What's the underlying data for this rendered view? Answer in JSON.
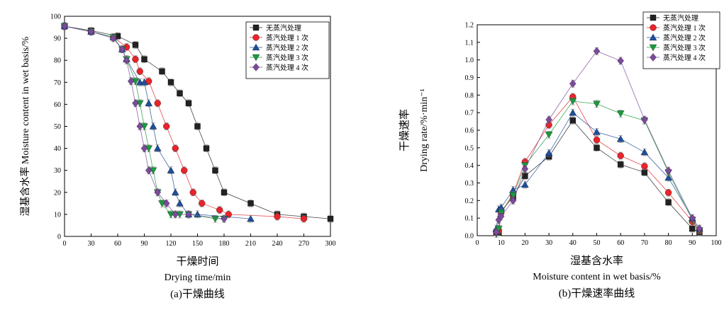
{
  "chart_data": [
    {
      "type": "scatter",
      "caption": "(a)干燥曲线",
      "xlabel_cn": "干燥时间",
      "xlabel": "Drying time/min",
      "ylabel": "湿基含水率 Moisture content in wet basis/%",
      "xlim": [
        0,
        300
      ],
      "ylim": [
        0,
        100
      ],
      "xticks": [
        0,
        30,
        60,
        90,
        120,
        150,
        180,
        210,
        240,
        270,
        300
      ],
      "yticks": [
        0,
        10,
        20,
        30,
        40,
        50,
        60,
        70,
        80,
        90,
        100
      ],
      "legend_position": "top-right",
      "grid": false,
      "series": [
        {
          "name": "无蒸汽处理",
          "color": "#222222",
          "marker": "square",
          "x": [
            0,
            30,
            60,
            80,
            90,
            110,
            120,
            130,
            140,
            150,
            160,
            170,
            180,
            210,
            240,
            270,
            300
          ],
          "y": [
            95.5,
            93.5,
            91,
            87,
            80.5,
            75,
            70,
            65,
            60.5,
            50,
            40,
            30,
            20,
            15,
            10,
            9,
            8
          ]
        },
        {
          "name": "蒸汽处理 1 次",
          "color": "#e8232a",
          "marker": "circle",
          "x": [
            0,
            30,
            55,
            70,
            80,
            85,
            95,
            105,
            115,
            125,
            135,
            145,
            155,
            175,
            185,
            240,
            270
          ],
          "y": [
            95.5,
            93,
            90.5,
            86,
            80.5,
            75,
            70.5,
            60.5,
            50,
            40,
            30,
            20,
            15,
            12,
            10,
            9,
            8
          ]
        },
        {
          "name": "蒸汽处理 2 次",
          "color": "#1f4e9c",
          "marker": "triangle",
          "x": [
            0,
            30,
            55,
            65,
            70,
            85,
            90,
            95,
            100,
            105,
            120,
            125,
            130,
            140,
            150,
            210
          ],
          "y": [
            95.5,
            93,
            90.5,
            85,
            80.5,
            70,
            70,
            60.5,
            50,
            40,
            30,
            20,
            15,
            10,
            10,
            8
          ]
        },
        {
          "name": "蒸汽处理 3 次",
          "color": "#1a9a3e",
          "marker": "triangle-down",
          "x": [
            0,
            30,
            55,
            65,
            70,
            80,
            85,
            90,
            95,
            100,
            105,
            110,
            120,
            130,
            140,
            170,
            180
          ],
          "y": [
            95.5,
            93,
            90.5,
            85,
            80.5,
            70.5,
            60.5,
            50,
            40,
            30,
            20,
            15,
            10,
            10,
            10,
            8,
            8
          ]
        },
        {
          "name": "蒸汽处理 4 次",
          "color": "#7b4a9b",
          "marker": "diamond",
          "x": [
            0,
            30,
            55,
            65,
            70,
            75,
            80,
            85,
            90,
            95,
            105,
            115,
            125,
            140,
            180
          ],
          "y": [
            95.5,
            93,
            90,
            85,
            80,
            70.5,
            60.5,
            50,
            40,
            30,
            20,
            15,
            10,
            10,
            8
          ]
        }
      ]
    },
    {
      "type": "line",
      "caption": "(b)干燥速率曲线",
      "xlabel_cn": "湿基含水率",
      "xlabel": "Moisture content in wet basis/%",
      "ylabel_cn": "干燥速率",
      "ylabel": "Drying rate/%·min⁻¹",
      "xlim": [
        0,
        100
      ],
      "ylim": [
        0,
        1.2
      ],
      "xticks": [
        0,
        10,
        20,
        30,
        40,
        50,
        60,
        70,
        80,
        90,
        100
      ],
      "yticks": [
        0.0,
        0.1,
        0.2,
        0.3,
        0.4,
        0.5,
        0.6,
        0.7,
        0.8,
        0.9,
        1.0,
        1.1,
        1.2
      ],
      "legend_position": "top-right",
      "grid": false,
      "series": [
        {
          "name": "无蒸汽处理",
          "color": "#222222",
          "marker": "square",
          "x": [
            8,
            9,
            10,
            15,
            20,
            30,
            40,
            50,
            60,
            70,
            80,
            90,
            93
          ],
          "y": [
            0.02,
            0.02,
            0.14,
            0.22,
            0.34,
            0.45,
            0.655,
            0.5,
            0.405,
            0.36,
            0.19,
            0.04,
            0.02
          ]
        },
        {
          "name": "蒸汽处理 1 次",
          "color": "#e8232a",
          "marker": "circle",
          "x": [
            8,
            9,
            10,
            15,
            20,
            30,
            40,
            50,
            60,
            70,
            80,
            90,
            93
          ],
          "y": [
            0.02,
            0.03,
            0.13,
            0.24,
            0.42,
            0.63,
            0.79,
            0.545,
            0.455,
            0.395,
            0.245,
            0.08,
            0.03
          ]
        },
        {
          "name": "蒸汽处理 2 次",
          "color": "#1f4e9c",
          "marker": "triangle",
          "x": [
            8,
            9,
            10,
            15,
            20,
            30,
            40,
            50,
            60,
            70,
            80,
            90,
            93
          ],
          "y": [
            0.04,
            0.15,
            0.16,
            0.26,
            0.29,
            0.47,
            0.7,
            0.59,
            0.55,
            0.475,
            0.33,
            0.1,
            0.04
          ]
        },
        {
          "name": "蒸汽处理 3 次",
          "color": "#1a9a3e",
          "marker": "triangle-down",
          "x": [
            8,
            9,
            10,
            15,
            20,
            30,
            40,
            50,
            60,
            70,
            80,
            90,
            93
          ],
          "y": [
            0.01,
            0.04,
            0.13,
            0.23,
            0.4,
            0.575,
            0.765,
            0.75,
            0.695,
            0.655,
            0.36,
            0.09,
            0.03
          ]
        },
        {
          "name": "蒸汽处理 4 次",
          "color": "#7b4a9b",
          "marker": "diamond",
          "x": [
            8,
            9,
            10,
            15,
            20,
            30,
            40,
            50,
            60,
            70,
            80,
            90,
            93
          ],
          "y": [
            0.02,
            0.09,
            0.11,
            0.2,
            0.38,
            0.66,
            0.865,
            1.05,
            0.995,
            0.66,
            0.37,
            0.1,
            0.04
          ]
        }
      ]
    }
  ]
}
